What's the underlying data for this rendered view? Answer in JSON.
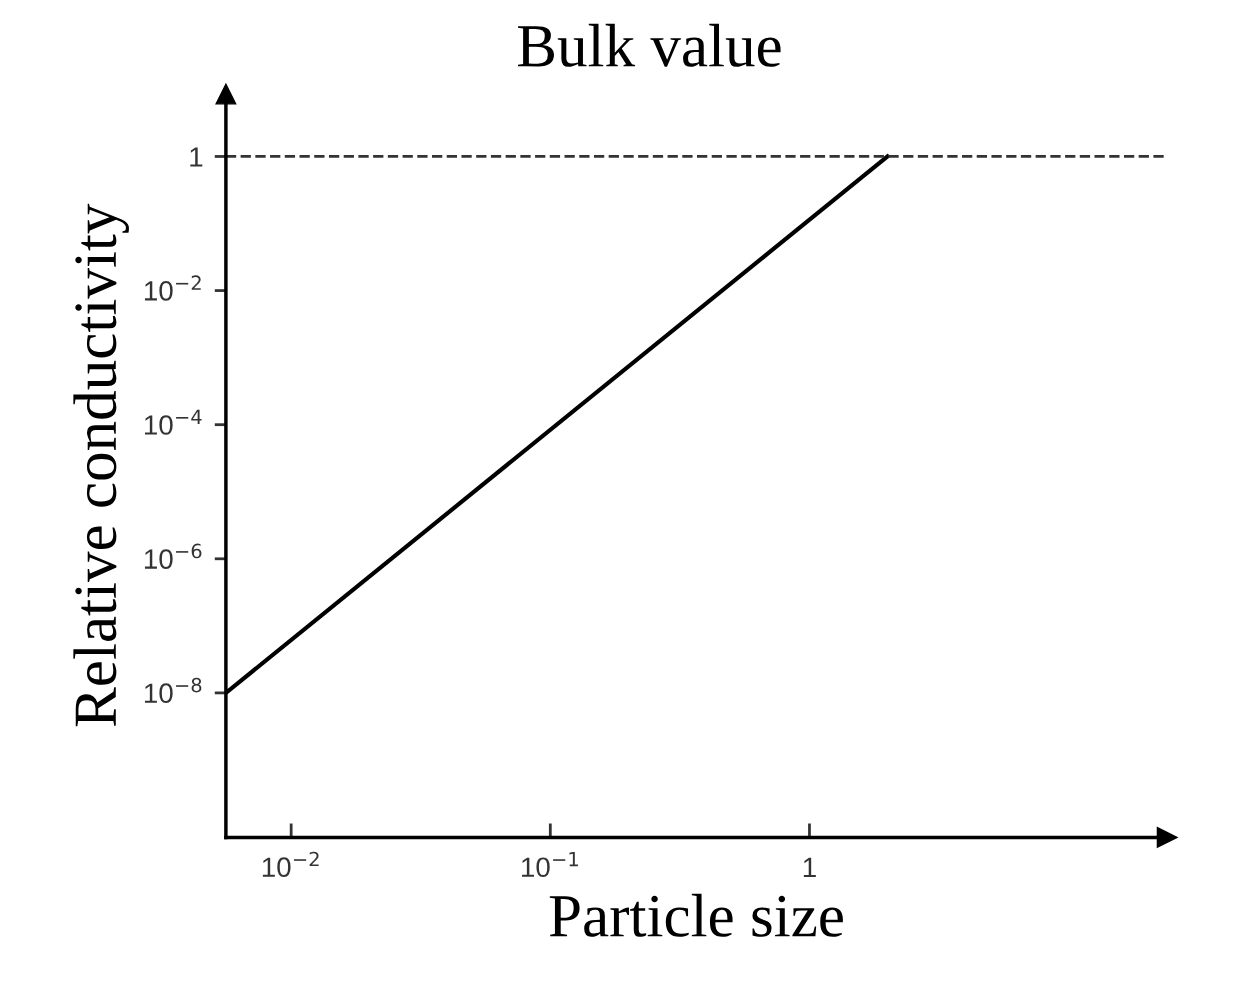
{
  "chart_data": {
    "type": "line",
    "xlabel": "Particle size",
    "ylabel": "Relative conductivity",
    "log": "xy",
    "x": [
      0.0056,
      2.0
    ],
    "series": [
      {
        "color": "#000000",
        "values": [
          1e-08,
          1
        ]
      }
    ],
    "xlim": [
      0.0056,
      24
    ],
    "ylim": [
      7e-11,
      8.5
    ],
    "xticks": [
      {
        "value": 0.01,
        "label": "10$^{−2}$"
      },
      {
        "value": 0.1,
        "label": "10$^{−1}$"
      },
      1
    ],
    "yticks": [
      {
        "value": 1e-08,
        "label": "10$^{−8}$"
      },
      {
        "value": 1e-06,
        "label": "10$^{−6}$"
      },
      {
        "value": 0.0001,
        "label": "10$^{−4}$"
      },
      {
        "value": 0.01,
        "label": "10$^{−2}$"
      },
      1
    ],
    "ref_lines": [
      {
        "axis": "y",
        "value": 1,
        "label": "Bulk value",
        "color": "#333333",
        "line_style": "dashed"
      }
    ],
    "grid": false,
    "legend": false,
    "marker": "none",
    "line_style": "solid"
  }
}
